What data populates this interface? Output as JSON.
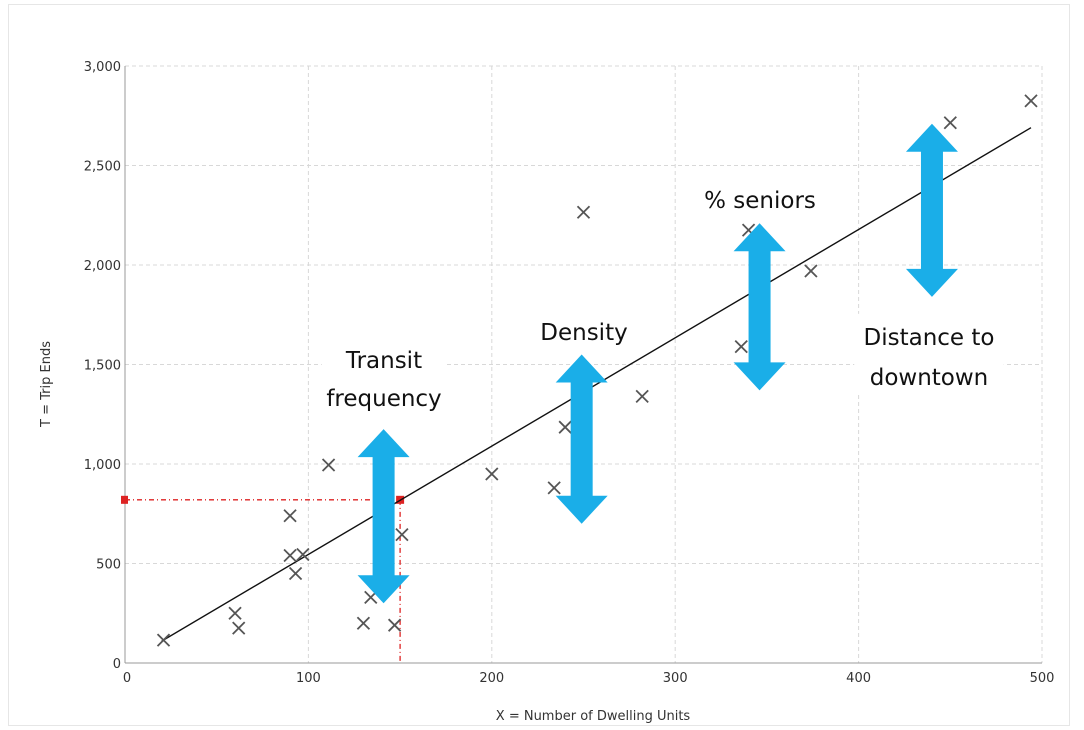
{
  "chart_data": {
    "type": "scatter",
    "xlabel": "X = Number of Dwelling Units",
    "ylabel": "T = Trip Ends",
    "xlim": [
      0,
      500
    ],
    "ylim": [
      0,
      3000
    ],
    "x_ticks": [
      0,
      100,
      200,
      300,
      400,
      500
    ],
    "y_ticks": [
      0,
      500,
      1000,
      1500,
      2000,
      2500,
      3000
    ],
    "x_tick_labels": [
      "0",
      "100",
      "200",
      "300",
      "400",
      "500"
    ],
    "y_tick_labels": [
      "0",
      "500",
      "1,000",
      "1,500",
      "2,000",
      "2,500",
      "3,000"
    ],
    "grid": true,
    "points": [
      {
        "x": 21,
        "y": 115
      },
      {
        "x": 60,
        "y": 250
      },
      {
        "x": 62,
        "y": 175
      },
      {
        "x": 90,
        "y": 740
      },
      {
        "x": 90,
        "y": 540
      },
      {
        "x": 93,
        "y": 450
      },
      {
        "x": 97,
        "y": 545
      },
      {
        "x": 111,
        "y": 995
      },
      {
        "x": 130,
        "y": 200
      },
      {
        "x": 134,
        "y": 330
      },
      {
        "x": 147,
        "y": 190
      },
      {
        "x": 151,
        "y": 645
      },
      {
        "x": 200,
        "y": 950
      },
      {
        "x": 234,
        "y": 880
      },
      {
        "x": 240,
        "y": 1185
      },
      {
        "x": 250,
        "y": 2265
      },
      {
        "x": 282,
        "y": 1340
      },
      {
        "x": 336,
        "y": 1590
      },
      {
        "x": 340,
        "y": 2175
      },
      {
        "x": 374,
        "y": 1970
      },
      {
        "x": 450,
        "y": 2715
      },
      {
        "x": 494,
        "y": 2825
      }
    ],
    "trend_line": {
      "x": [
        20,
        494
      ],
      "y": [
        110,
        2690
      ]
    },
    "reference_point": {
      "x": 150,
      "y": 820
    },
    "annotations": [
      {
        "text_lines": [
          "Transit",
          "frequency"
        ],
        "arrow_x": 141,
        "arrow_y": [
          1175,
          300
        ]
      },
      {
        "text_lines": [
          "Density"
        ],
        "arrow_x": 249,
        "arrow_y": [
          1550,
          700
        ]
      },
      {
        "text_lines": [
          "% seniors"
        ],
        "arrow_x": 346,
        "arrow_y": [
          2210,
          1370
        ]
      },
      {
        "text_lines": [
          "Distance to",
          "downtown"
        ],
        "arrow_x": 440,
        "arrow_y": [
          2710,
          1840
        ]
      }
    ],
    "colors": {
      "markers": "#555555",
      "trend_line": "#111111",
      "reference": "#dd2222",
      "arrows": "#1aaee8",
      "grid": "#d8d8d8"
    }
  }
}
